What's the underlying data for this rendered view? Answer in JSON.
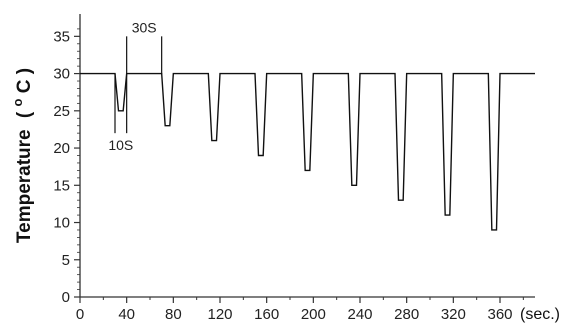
{
  "chart_data": {
    "type": "line",
    "xlabel": "",
    "ylabel": "Temperature",
    "ylabel_unit_open": "( ",
    "ylabel_unit_sup": "o",
    "ylabel_unit_close": "C )",
    "x_unit_label": "(sec.)",
    "xlim": [
      0,
      390
    ],
    "ylim": [
      0,
      38
    ],
    "x_ticks": [
      0,
      40,
      80,
      120,
      160,
      200,
      240,
      280,
      320,
      360
    ],
    "y_ticks": [
      0,
      5,
      10,
      15,
      20,
      25,
      30,
      35
    ],
    "baseline": 30,
    "series": [
      {
        "x": [
          0,
          30,
          33,
          37,
          40,
          70,
          73,
          77,
          80,
          110,
          113,
          117,
          120,
          150,
          153,
          157,
          160,
          190,
          193,
          197,
          200,
          230,
          233,
          237,
          240,
          270,
          273,
          277,
          280,
          310,
          313,
          317,
          320,
          350,
          353,
          357,
          360,
          390
        ],
        "y": [
          30,
          30,
          25,
          25,
          30,
          30,
          23,
          23,
          30,
          30,
          21,
          21,
          30,
          30,
          19,
          19,
          30,
          30,
          17,
          17,
          30,
          30,
          15,
          15,
          30,
          30,
          13,
          13,
          30,
          30,
          11,
          11,
          30,
          30,
          9,
          9,
          30,
          30
        ]
      }
    ],
    "annotations": [
      {
        "text": "30S",
        "x_start": 40,
        "x_end": 70,
        "y_top": 35
      },
      {
        "text": "10S",
        "x_start": 30,
        "x_end": 40,
        "y_bottom": 22
      }
    ]
  }
}
